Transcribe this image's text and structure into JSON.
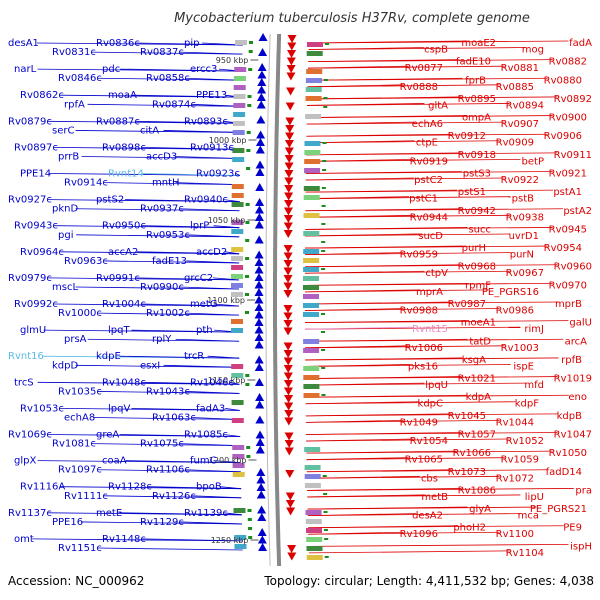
{
  "title": "Mycobacterium tuberculosis H37Rv, complete genome",
  "footer": {
    "accession": "Accession: NC_000962",
    "summary": "Topology: circular; Length: 4,411,532 bp; Genes: 4,038"
  },
  "colors": {
    "left_strand": "#0000cc",
    "right_strand": "#dd0000",
    "rna_left": "#5bbce4",
    "rna_right": "#e888c8",
    "backbone": "#888888",
    "tick": "#1a8c1a"
  },
  "ticks": [
    "950 kbp",
    "1000 kbp",
    "1050 kbp",
    "1100 kbp",
    "1150 kbp",
    "1200 kbp",
    "1250 kbp"
  ],
  "left_labels": [
    "desA1",
    "Rv0831c",
    "Rv0836c",
    "Rv0837c",
    "pip",
    "narL",
    "Rv0846c",
    "pdc",
    "Rv0858c",
    "ercc3",
    "Rv0862c",
    "rpfA",
    "moaA",
    "Rv0874c",
    "PPE13",
    "Rv0879c",
    "serC",
    "Rv0887c",
    "citA",
    "Rv0893c",
    "Rv0897c",
    "prrB",
    "Rv0898c",
    "accD3",
    "Rv0913c",
    "PPE14",
    "Rv0914c",
    "Rvnt14",
    "mntH",
    "Rv0923c",
    "Rv0927c",
    "pknD",
    "pstS2",
    "Rv0937c",
    "Rv0940c",
    "Rv0943c",
    "pgi",
    "Rv0950c",
    "Rv0953c",
    "lprP",
    "Rv0964c",
    "Rv0963c",
    "accA2",
    "fadE13",
    "accD2",
    "Rv0979c",
    "mscL",
    "Rv0991c",
    "Rv0990c",
    "grcC2",
    "Rv0992c",
    "Rv1000c",
    "Rv1004c",
    "Rv1002c",
    "metG",
    "glmU",
    "prsA",
    "lpqT",
    "rplY",
    "pth",
    "Rvnt16",
    "kdpD",
    "kdpE",
    "esxI",
    "trcR",
    "trcS",
    "Rv1035c",
    "Rv1048c",
    "Rv1043c",
    "Rv1046c",
    "Rv1053c",
    "echA8",
    "lpqV",
    "Rv1063c",
    "fadA3",
    "Rv1069c",
    "Rv1081c",
    "greA",
    "Rv1075c",
    "Rv1085c",
    "glpX",
    "Rv1097c",
    "coaA",
    "Rv1106c",
    "fumC",
    "Rv1116A",
    "Rv1111c",
    "Rv1128c",
    "Rv1126c",
    "bpoB",
    "Rv1137c",
    "PPE16",
    "metE",
    "Rv1129c",
    "Rv1139c",
    "omt",
    "Rv1151c",
    "Rv1148c"
  ],
  "right_labels": [
    "fadA",
    "mog",
    "moaE2",
    "cspB",
    "Rv0882",
    "Rv0881",
    "fadE10",
    "Rv0877",
    "Rv0880",
    "Rv0885",
    "fprB",
    "Rv0888",
    "Rv0892",
    "Rv0894",
    "Rv0895",
    "gltA",
    "Rv0900",
    "Rv0907",
    "ompA",
    "echA6",
    "Rv0906",
    "Rv0909",
    "Rv0912",
    "ctpE",
    "Rv0911",
    "betP",
    "Rv0918",
    "Rv0919",
    "Rv0921",
    "Rv0922",
    "pstS3",
    "pstC2",
    "pstA1",
    "pstB",
    "pstS1",
    "pstC1",
    "pstA2",
    "Rv0938",
    "Rv0942",
    "Rv0944",
    "Rv0945",
    "uvrD1",
    "succ",
    "sucD",
    "Rv0954",
    "purN",
    "purH",
    "Rv0959",
    "Rv0960",
    "Rv0967",
    "Rv0968",
    "ctpV",
    "Rv0970",
    "PE_PGRS16",
    "rpmF",
    "mprA",
    "mprB",
    "Rv0986",
    "Rv0987",
    "Rv0988",
    "galU",
    "rimJ",
    "moeA1",
    "Rvnt15",
    "arcA",
    "Rv1003",
    "tatD",
    "Rv1006",
    "rpfB",
    "ispE",
    "ksgA",
    "pks16",
    "Rv1019",
    "mfd",
    "Rv1021",
    "lpqU",
    "eno",
    "kdpF",
    "kdpA",
    "kdpC",
    "kdpB",
    "Rv1044",
    "Rv1045",
    "Rv1049",
    "Rv1047",
    "Rv1052",
    "Rv1057",
    "Rv1054",
    "Rv1050",
    "Rv1059",
    "Rv1066",
    "Rv1065",
    "fadD14",
    "Rv1072",
    "Rv1073",
    "cbs",
    "pra",
    "lipU",
    "Rv1086",
    "metB",
    "PE_PGRS21",
    "mca",
    "glyA",
    "desA2",
    "PE9",
    "Rv1100",
    "phoH2",
    "Rv1096",
    "ispH",
    "Rv1104"
  ]
}
